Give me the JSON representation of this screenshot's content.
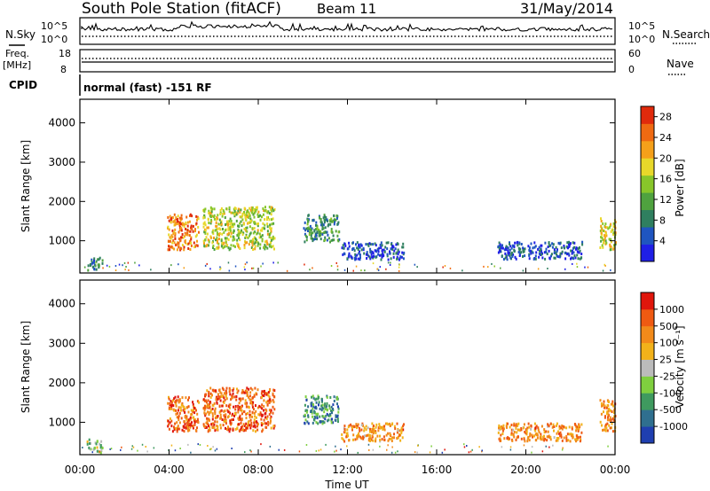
{
  "header": {
    "station": "South Pole Station (fitACF)",
    "beam": "Beam 11",
    "date": "31/May/2014"
  },
  "top_panels": {
    "nsky_label": "N.Sky",
    "nsearch_label": "N.Search",
    "noise_tick_high": "10^5",
    "noise_tick_low": "10^0",
    "freq_label_1": "Freq.",
    "freq_label_2": "[MHz]",
    "freq_tick_high": "18",
    "freq_tick_low": "8",
    "nave_label": "Nave",
    "nave_tick_high": "60",
    "nave_tick_low": "0",
    "cpid_label": "CPID",
    "cpid_text": "normal (fast) -151 RF"
  },
  "chart_data": [
    {
      "type": "heatmap",
      "name": "Power",
      "ylabel": "Slant Range [km]",
      "xlabel": "Time UT",
      "x_ticks": [
        "00:00",
        "04:00",
        "08:00",
        "12:00",
        "16:00",
        "20:00",
        "00:00"
      ],
      "x_range_hours": [
        0,
        24
      ],
      "y_ticks": [
        1000,
        2000,
        3000,
        4000
      ],
      "ylim": [
        180,
        4600
      ],
      "colorbar": {
        "label": "Power [dB]",
        "ticks": [
          "4",
          "8",
          "12",
          "16",
          "20",
          "24",
          "28"
        ],
        "range": [
          0,
          30
        ],
        "colors": [
          "#1f1fe6",
          "#1f55c0",
          "#2f7f5f",
          "#4fa23f",
          "#88c62a",
          "#e8d82a",
          "#f5a01a",
          "#ef6a12",
          "#e02a0c"
        ]
      },
      "regions": [
        {
          "t0": 0.3,
          "t1": 1.0,
          "r0": 250,
          "r1": 600,
          "level": 0.25
        },
        {
          "t0": 3.9,
          "t1": 5.3,
          "r0": 800,
          "r1": 1700,
          "level": 0.8
        },
        {
          "t0": 5.5,
          "t1": 8.7,
          "r0": 800,
          "r1": 1900,
          "level": 0.55
        },
        {
          "t0": 10.0,
          "t1": 11.6,
          "r0": 1000,
          "r1": 1700,
          "level": 0.3
        },
        {
          "t0": 11.7,
          "t1": 14.5,
          "r0": 550,
          "r1": 1000,
          "level": 0.15
        },
        {
          "t0": 18.7,
          "t1": 22.5,
          "r0": 550,
          "r1": 1000,
          "level": 0.15
        },
        {
          "t0": 23.3,
          "t1": 24.0,
          "r0": 800,
          "r1": 1600,
          "level": 0.6
        }
      ]
    },
    {
      "type": "heatmap",
      "name": "Velocity",
      "ylabel": "Slant Range [km]",
      "xlabel": "Time UT",
      "x_ticks": [
        "00:00",
        "04:00",
        "08:00",
        "12:00",
        "16:00",
        "20:00",
        "00:00"
      ],
      "x_range_hours": [
        0,
        24
      ],
      "y_ticks": [
        1000,
        2000,
        3000,
        4000
      ],
      "ylim": [
        180,
        4600
      ],
      "colorbar": {
        "label": "Velocity [m s⁻¹]",
        "ticks": [
          "1000",
          "500",
          "100",
          "25",
          "-25",
          "-100",
          "-500",
          "-1000"
        ],
        "colors": [
          "#1f3fb0",
          "#2f6f8f",
          "#3f9a5f",
          "#7fcf3f",
          "#bbbbbb",
          "#f2b21a",
          "#f28a1a",
          "#ef5a12",
          "#e0160c"
        ]
      },
      "regions": [
        {
          "t0": 0.3,
          "t1": 1.0,
          "r0": 250,
          "r1": 600,
          "level": 0.4
        },
        {
          "t0": 3.9,
          "t1": 5.3,
          "r0": 800,
          "r1": 1700,
          "level": 0.8
        },
        {
          "t0": 5.5,
          "t1": 8.7,
          "r0": 800,
          "r1": 1900,
          "level": 0.8
        },
        {
          "t0": 10.0,
          "t1": 11.6,
          "r0": 1000,
          "r1": 1700,
          "level": 0.25
        },
        {
          "t0": 11.7,
          "t1": 14.5,
          "r0": 550,
          "r1": 1000,
          "level": 0.72
        },
        {
          "t0": 18.7,
          "t1": 22.5,
          "r0": 550,
          "r1": 1000,
          "level": 0.72
        },
        {
          "t0": 23.3,
          "t1": 24.0,
          "r0": 800,
          "r1": 1600,
          "level": 0.72
        }
      ]
    }
  ]
}
